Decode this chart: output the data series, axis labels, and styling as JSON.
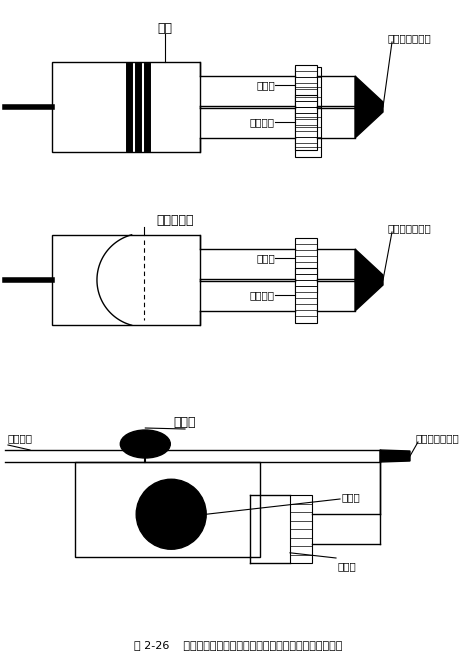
{
  "fig_width": 4.76,
  "fig_height": 6.65,
  "dpi": 100,
  "bg_color": "#ffffff",
  "lc": "#000000",
  "caption": "图 2-26    高频震动器的三种方式：活塞泵、扬声器隔膜和旋转球",
  "d1_title": "活塞",
  "d1_huqi": "呼气口",
  "d1_xinxian": "新鲜气源",
  "d1_xinguan": "气管内导管接头",
  "d2_title": "扬声器隔膜",
  "d2_huqi": "呼气口",
  "d2_xinxian": "新鲜气源",
  "d2_xinguan": "气管内导管接头",
  "d3_title": "发动机",
  "d3_xinxian": "新鲜气源",
  "d3_xinguan": "气管内导管接头",
  "d3_xuanzhuan": "旋转球",
  "d3_huqi": "呼气口"
}
